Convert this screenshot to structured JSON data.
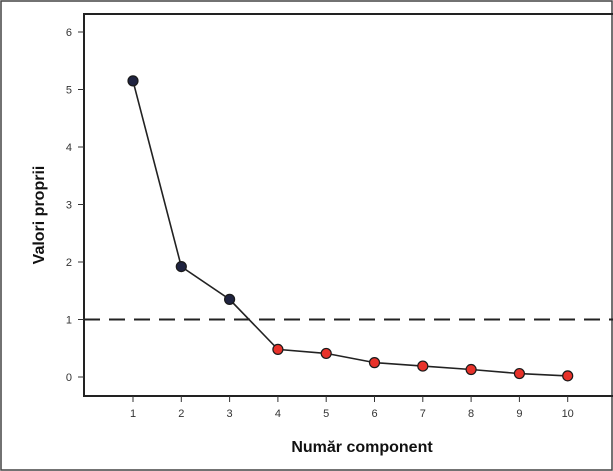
{
  "chart_data": {
    "type": "line",
    "xlabel": "Număr component",
    "ylabel": "Valori proprii",
    "x": [
      1,
      2,
      3,
      4,
      5,
      6,
      7,
      8,
      9,
      10
    ],
    "x_tick_labels": [
      "1",
      "2",
      "3",
      "4",
      "5",
      "6",
      "7",
      "8",
      "9",
      "10"
    ],
    "y_tick_labels": [
      "0",
      "1",
      "2",
      "3",
      "4",
      "5",
      "6"
    ],
    "ylim": [
      0,
      6
    ],
    "series": [
      {
        "values": [
          5.15,
          1.92,
          1.35,
          0.48,
          0.41,
          0.25,
          0.19,
          0.13,
          0.06,
          0.02
        ],
        "marker_colors": [
          "#1f2340",
          "#1f2340",
          "#1f2340",
          "#e8322a",
          "#e8322a",
          "#e8322a",
          "#e8322a",
          "#e8322a",
          "#e8322a",
          "#e8322a"
        ]
      }
    ],
    "reference_line": {
      "y": 1,
      "style": "dashed"
    },
    "grid": false,
    "colors": {
      "line": "#222222",
      "marker_high": "#1f2340",
      "marker_low": "#e8322a",
      "frame": "#222222",
      "reference": "#222222"
    }
  }
}
